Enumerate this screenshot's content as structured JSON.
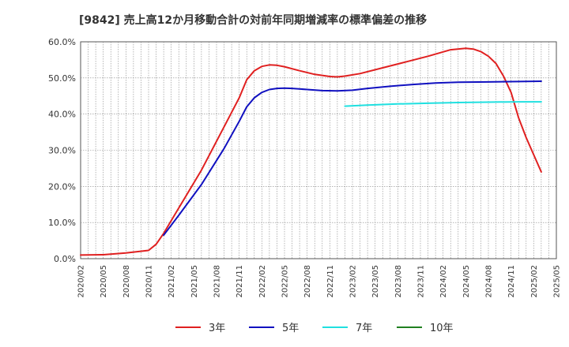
{
  "chart_data": {
    "type": "line",
    "title": "[9842]  売上高12か月移動合計の対前年同期増減率の標準偏差の推移",
    "xlabel": "",
    "ylabel": "",
    "ylim": [
      0,
      60
    ],
    "y_ticks": [
      0,
      10,
      20,
      30,
      40,
      50,
      60
    ],
    "y_tick_labels": [
      "0.0%",
      "10.0%",
      "20.0%",
      "30.0%",
      "40.0%",
      "50.0%",
      "60.0%"
    ],
    "x_tick_labels": [
      "2020/02",
      "2020/05",
      "2020/08",
      "2020/11",
      "2021/02",
      "2021/05",
      "2021/08",
      "2021/11",
      "2022/02",
      "2022/05",
      "2022/08",
      "2022/11",
      "2023/02",
      "2023/05",
      "2023/08",
      "2023/11",
      "2024/02",
      "2024/05",
      "2024/08",
      "2024/11",
      "2025/02",
      "2025/05"
    ],
    "x_range_months": [
      0,
      63
    ],
    "grid": true,
    "legend_position": "bottom",
    "series": [
      {
        "name": "3年",
        "color": "#e02020",
        "data": [
          [
            0,
            1.0
          ],
          [
            3,
            1.1
          ],
          [
            6,
            1.6
          ],
          [
            9,
            2.3
          ],
          [
            10,
            4.0
          ],
          [
            11,
            7.0
          ],
          [
            13,
            14.0
          ],
          [
            16,
            24.5
          ],
          [
            19,
            36.5
          ],
          [
            21,
            44.5
          ],
          [
            22,
            49.5
          ],
          [
            23,
            52.0
          ],
          [
            24,
            53.2
          ],
          [
            25,
            53.6
          ],
          [
            26,
            53.5
          ],
          [
            27,
            53.1
          ],
          [
            29,
            52.0
          ],
          [
            31,
            51.0
          ],
          [
            33,
            50.4
          ],
          [
            34,
            50.3
          ],
          [
            35,
            50.5
          ],
          [
            37,
            51.2
          ],
          [
            40,
            52.8
          ],
          [
            43,
            54.4
          ],
          [
            46,
            56.0
          ],
          [
            49,
            57.8
          ],
          [
            51,
            58.2
          ],
          [
            52,
            58.0
          ],
          [
            53,
            57.3
          ],
          [
            54,
            56.0
          ],
          [
            55,
            54.0
          ],
          [
            56,
            50.5
          ],
          [
            57,
            46.0
          ],
          [
            58,
            39.0
          ],
          [
            59,
            33.5
          ],
          [
            61,
            24.0
          ]
        ]
      },
      {
        "name": "5年",
        "color": "#1010c0",
        "data": [
          [
            11,
            6.5
          ],
          [
            13,
            12.0
          ],
          [
            16,
            20.5
          ],
          [
            19,
            30.5
          ],
          [
            21,
            38.0
          ],
          [
            22,
            42.0
          ],
          [
            23,
            44.5
          ],
          [
            24,
            46.0
          ],
          [
            25,
            46.8
          ],
          [
            26,
            47.1
          ],
          [
            27,
            47.2
          ],
          [
            28,
            47.1
          ],
          [
            30,
            46.8
          ],
          [
            32,
            46.5
          ],
          [
            34,
            46.4
          ],
          [
            36,
            46.6
          ],
          [
            38,
            47.1
          ],
          [
            41,
            47.7
          ],
          [
            44,
            48.2
          ],
          [
            47,
            48.6
          ],
          [
            50,
            48.8
          ],
          [
            54,
            48.9
          ],
          [
            58,
            49.0
          ],
          [
            61,
            49.1
          ]
        ]
      },
      {
        "name": "7年",
        "color": "#20e0e0",
        "data": [
          [
            35,
            42.2
          ],
          [
            38,
            42.5
          ],
          [
            42,
            42.8
          ],
          [
            46,
            43.0
          ],
          [
            50,
            43.2
          ],
          [
            54,
            43.3
          ],
          [
            58,
            43.4
          ],
          [
            61,
            43.4
          ]
        ]
      },
      {
        "name": "10年",
        "color": "#208020",
        "data": []
      }
    ]
  }
}
